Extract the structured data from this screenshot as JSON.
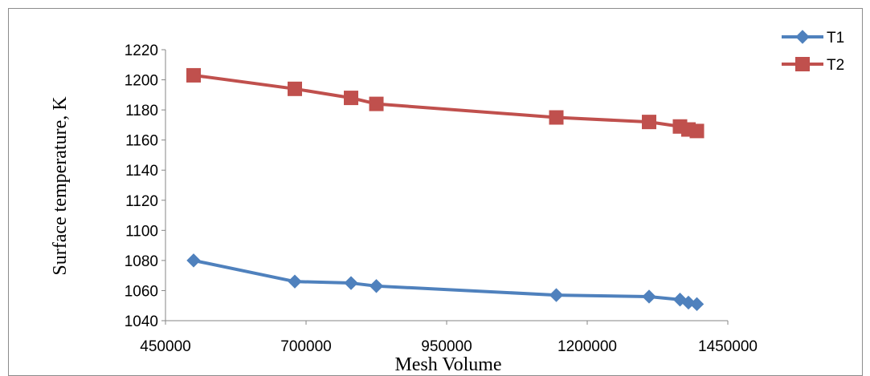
{
  "chart_data": {
    "type": "line",
    "xlabel": "Mesh Volume",
    "ylabel": "Surface temperature, K",
    "xlim": [
      450000,
      1450000
    ],
    "ylim": [
      1040,
      1220
    ],
    "x_ticks": [
      "450000",
      "700000",
      "950000",
      "1200000",
      "1450000"
    ],
    "y_ticks": [
      "1040",
      "1060",
      "1080",
      "1100",
      "1120",
      "1140",
      "1160",
      "1180",
      "1200",
      "1220"
    ],
    "grid": false,
    "legend_position": "top-right",
    "series": [
      {
        "name": "T1",
        "color": "#4F81BD",
        "marker": "diamond",
        "points": [
          {
            "x": 500000,
            "y": 1080
          },
          {
            "x": 680000,
            "y": 1066
          },
          {
            "x": 780000,
            "y": 1065
          },
          {
            "x": 825000,
            "y": 1063
          },
          {
            "x": 1145000,
            "y": 1057
          },
          {
            "x": 1310000,
            "y": 1056
          },
          {
            "x": 1365000,
            "y": 1054
          },
          {
            "x": 1380000,
            "y": 1052
          },
          {
            "x": 1395000,
            "y": 1051
          }
        ]
      },
      {
        "name": "T2",
        "color": "#C0504D",
        "marker": "square",
        "points": [
          {
            "x": 500000,
            "y": 1203
          },
          {
            "x": 680000,
            "y": 1194
          },
          {
            "x": 780000,
            "y": 1188
          },
          {
            "x": 825000,
            "y": 1184
          },
          {
            "x": 1145000,
            "y": 1175
          },
          {
            "x": 1310000,
            "y": 1172
          },
          {
            "x": 1365000,
            "y": 1169
          },
          {
            "x": 1380000,
            "y": 1167
          },
          {
            "x": 1395000,
            "y": 1166
          }
        ]
      }
    ]
  }
}
